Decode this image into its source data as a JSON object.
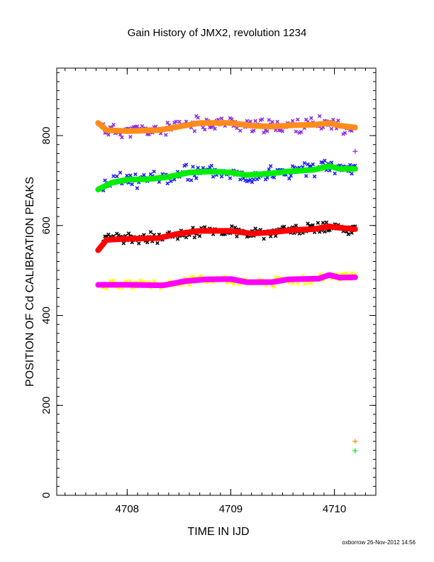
{
  "chart_data": {
    "type": "scatter",
    "title": "Gain History of JMX2, revolution 1234",
    "xlabel": "TIME IN IJD",
    "ylabel": "POSITION OF Cd CALIBRATION PEAKS",
    "xlim": [
      4707.32,
      4710.4
    ],
    "ylim": [
      0,
      950
    ],
    "xticks": [
      4708,
      4709,
      4710
    ],
    "xtick_labels": [
      "4708",
      "4709",
      "4710"
    ],
    "yticks": [
      0,
      200,
      400,
      600,
      800
    ],
    "ytick_labels": [
      "0",
      "200",
      "400",
      "600",
      "800"
    ],
    "grid": false,
    "footer": "oxborrow 26-Nov-2012 14:56",
    "colors": {
      "raw_top": "#8b2be2",
      "fit_top": "#ff8c1a",
      "raw_upper": "#1c1cff",
      "fit_upper": "#00ee00",
      "raw_lower": "#000000",
      "fit_lower": "#ff0000",
      "raw_bottom": "#ffff00",
      "fit_bottom": "#ff00ff",
      "outlier_orange": "#ff8c1a",
      "outlier_green": "#00ee00"
    },
    "fit_curves": [
      {
        "color": "fit_top",
        "x": [
          4707.72,
          4707.8,
          4708.0,
          4708.3,
          4708.5,
          4708.7,
          4709.0,
          4709.2,
          4709.4,
          4709.6,
          4709.8,
          4709.95,
          4710.05,
          4710.2
        ],
        "y": [
          828,
          812,
          810,
          812,
          820,
          828,
          828,
          822,
          820,
          823,
          824,
          828,
          822,
          818
        ]
      },
      {
        "color": "fit_upper",
        "x": [
          4707.72,
          4707.85,
          4708.0,
          4708.2,
          4708.4,
          4708.6,
          4708.8,
          4709.0,
          4709.15,
          4709.35,
          4709.55,
          4709.8,
          4709.95,
          4710.05,
          4710.2
        ],
        "y": [
          680,
          695,
          702,
          703,
          708,
          718,
          720,
          718,
          712,
          715,
          720,
          724,
          732,
          726,
          726
        ]
      },
      {
        "color": "fit_lower",
        "x": [
          4707.72,
          4707.8,
          4707.95,
          4708.3,
          4708.5,
          4708.7,
          4709.0,
          4709.2,
          4709.4,
          4709.6,
          4709.8,
          4709.95,
          4710.05,
          4710.2
        ],
        "y": [
          545,
          568,
          570,
          572,
          582,
          588,
          588,
          582,
          585,
          590,
          592,
          598,
          595,
          592
        ]
      },
      {
        "color": "fit_bottom",
        "x": [
          4707.72,
          4708.0,
          4708.35,
          4708.55,
          4708.75,
          4709.0,
          4709.15,
          4709.4,
          4709.55,
          4709.85,
          4709.95,
          4710.05,
          4710.2
        ],
        "y": [
          468,
          468,
          467,
          476,
          480,
          481,
          474,
          474,
          480,
          482,
          490,
          484,
          485
        ]
      }
    ],
    "raw_bands": [
      {
        "color": "raw_top",
        "base_curve": 0,
        "spread": 14,
        "seed": 11
      },
      {
        "color": "raw_upper",
        "base_curve": 1,
        "spread": 16,
        "seed": 23
      },
      {
        "color": "raw_lower",
        "base_curve": 2,
        "spread": 11,
        "seed": 37
      },
      {
        "color": "raw_bottom",
        "base_curve": 3,
        "spread": 9,
        "seed": 51
      }
    ],
    "isolated_points": [
      {
        "x": 4710.2,
        "y": 765,
        "color": "raw_top"
      },
      {
        "x": 4710.2,
        "y": 120,
        "color": "outlier_orange"
      },
      {
        "x": 4710.2,
        "y": 99,
        "color": "outlier_green"
      },
      {
        "x": 4707.72,
        "y": 545,
        "color": "fit_lower"
      }
    ]
  }
}
